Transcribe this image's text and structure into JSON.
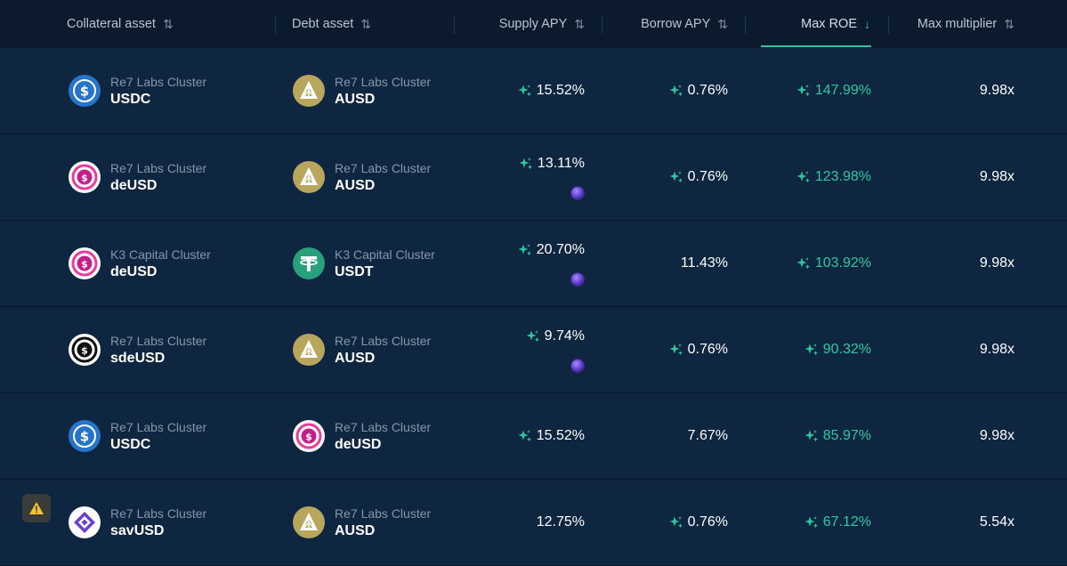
{
  "columns": {
    "collateral": "Collateral asset",
    "debt": "Debt asset",
    "supply_apy": "Supply APY",
    "borrow_apy": "Borrow APY",
    "max_roe": "Max ROE",
    "max_multiplier": "Max multiplier"
  },
  "sort": {
    "column": "max_roe",
    "direction": "desc"
  },
  "colors": {
    "accent": "#2ec8a0",
    "background": "#0f2640",
    "header": "#0b1a2c"
  },
  "rows": [
    {
      "collateral": {
        "cluster": "Re7 Labs Cluster",
        "symbol": "USDC",
        "icon": "usdc-icon"
      },
      "debt": {
        "cluster": "Re7 Labs Cluster",
        "symbol": "AUSD",
        "icon": "ausd-icon"
      },
      "supply_apy": "15.52%",
      "supply_boost": true,
      "supply_reward": false,
      "borrow_apy": "0.76%",
      "borrow_boost": true,
      "max_roe": "147.99%",
      "max_multiplier": "9.98x",
      "warning": false
    },
    {
      "collateral": {
        "cluster": "Re7 Labs Cluster",
        "symbol": "deUSD",
        "icon": "deusd-icon"
      },
      "debt": {
        "cluster": "Re7 Labs Cluster",
        "symbol": "AUSD",
        "icon": "ausd-icon"
      },
      "supply_apy": "13.11%",
      "supply_boost": true,
      "supply_reward": true,
      "borrow_apy": "0.76%",
      "borrow_boost": true,
      "max_roe": "123.98%",
      "max_multiplier": "9.98x",
      "warning": false
    },
    {
      "collateral": {
        "cluster": "K3 Capital Cluster",
        "symbol": "deUSD",
        "icon": "deusd-icon"
      },
      "debt": {
        "cluster": "K3 Capital Cluster",
        "symbol": "USDT",
        "icon": "usdt-icon"
      },
      "supply_apy": "20.70%",
      "supply_boost": true,
      "supply_reward": true,
      "borrow_apy": "11.43%",
      "borrow_boost": false,
      "max_roe": "103.92%",
      "max_multiplier": "9.98x",
      "warning": false
    },
    {
      "collateral": {
        "cluster": "Re7 Labs Cluster",
        "symbol": "sdeUSD",
        "icon": "sdeusd-icon"
      },
      "debt": {
        "cluster": "Re7 Labs Cluster",
        "symbol": "AUSD",
        "icon": "ausd-icon"
      },
      "supply_apy": "9.74%",
      "supply_boost": true,
      "supply_reward": true,
      "borrow_apy": "0.76%",
      "borrow_boost": true,
      "max_roe": "90.32%",
      "max_multiplier": "9.98x",
      "warning": false
    },
    {
      "collateral": {
        "cluster": "Re7 Labs Cluster",
        "symbol": "USDC",
        "icon": "usdc-icon"
      },
      "debt": {
        "cluster": "Re7 Labs Cluster",
        "symbol": "deUSD",
        "icon": "deusd-icon"
      },
      "supply_apy": "15.52%",
      "supply_boost": true,
      "supply_reward": false,
      "borrow_apy": "7.67%",
      "borrow_boost": false,
      "max_roe": "85.97%",
      "max_multiplier": "9.98x",
      "warning": false
    },
    {
      "collateral": {
        "cluster": "Re7 Labs Cluster",
        "symbol": "savUSD",
        "icon": "savusd-icon"
      },
      "debt": {
        "cluster": "Re7 Labs Cluster",
        "symbol": "AUSD",
        "icon": "ausd-icon"
      },
      "supply_apy": "12.75%",
      "supply_boost": false,
      "supply_reward": false,
      "borrow_apy": "0.76%",
      "borrow_boost": true,
      "max_roe": "67.12%",
      "max_multiplier": "5.54x",
      "warning": true
    }
  ]
}
